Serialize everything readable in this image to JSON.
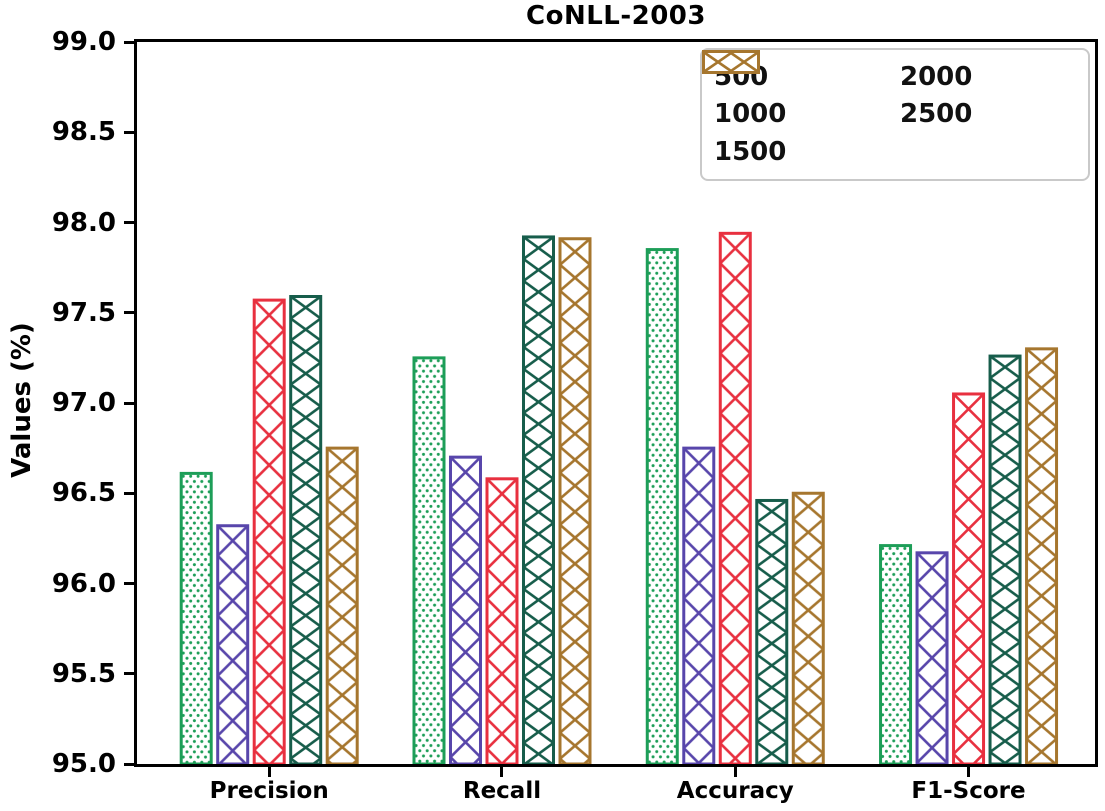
{
  "title": "CoNLL-2003",
  "chart_data": {
    "type": "bar",
    "title": "CoNLL-2003",
    "xlabel": "",
    "ylabel": "Values (%)",
    "ylim": [
      95.0,
      99.0
    ],
    "y_tick_step": 0.5,
    "y_tick_labels": [
      "99.0",
      "98.5",
      "98.0",
      "97.5",
      "97.0",
      "96.5",
      "96.0",
      "95.5",
      "95.0"
    ],
    "categories": [
      "Precision",
      "Recall",
      "Accuracy",
      "F1-Score"
    ],
    "series": [
      {
        "name": "500",
        "color": "#1d9e58",
        "hatch": "dots",
        "values": [
          96.61,
          97.25,
          97.85,
          96.21
        ]
      },
      {
        "name": "1000",
        "color": "#5846ab",
        "hatch": "cross",
        "values": [
          96.32,
          96.7,
          96.75,
          96.17
        ]
      },
      {
        "name": "1500",
        "color": "#e8303f",
        "hatch": "cross",
        "values": [
          97.57,
          96.58,
          97.94,
          97.05
        ]
      },
      {
        "name": "2000",
        "color": "#175d4b",
        "hatch": "cross",
        "values": [
          97.59,
          97.92,
          96.46,
          97.26
        ]
      },
      {
        "name": "2500",
        "color": "#a6762e",
        "hatch": "cross",
        "values": [
          96.75,
          97.91,
          96.5,
          97.3
        ]
      }
    ],
    "legend_position": "top-right",
    "legend_columns": 2,
    "grid": false,
    "bar_fill": "#ffffff",
    "axis_color": "#000000"
  }
}
